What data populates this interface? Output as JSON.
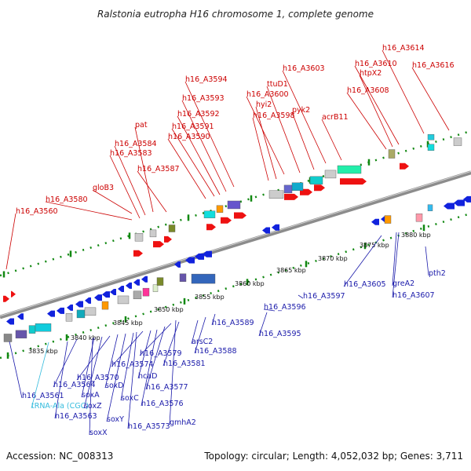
{
  "title": "Ralstonia eutropha H16 chromosome 1, complete genome",
  "footer": {
    "accession": "Accession: NC_008313",
    "topology": "Topology: circular; Length: 4,052,032 bp; Genes: 3,711"
  },
  "colors": {
    "forward": "#ee1111",
    "reverse": "#1122dd",
    "forward_label": "#cc0000",
    "reverse_label": "#1a1aaa",
    "trna_label": "#33bbdd",
    "backbone": "#8c8c8c",
    "tick": "#118811"
  },
  "scale_labels": [
    "3835 kbp",
    "3840 kbp",
    "3845 kbp",
    "3850 kbp",
    "3855 kbp",
    "3860 kbp",
    "3865 kbp",
    "3870 kbp",
    "3875 kbp",
    "3880 kbp"
  ],
  "forward_genes": [
    "h16_A3560",
    "gloB3",
    "h16_A3580",
    "h16_A3583",
    "h16_A3584",
    "pat",
    "h16_A3587",
    "h16_A3590",
    "h16_A3591",
    "h16_A3592",
    "h16_A3593",
    "h16_A3594",
    "h16_A3598",
    "hyi2",
    "h16_A3600",
    "ttuD1",
    "pyk2",
    "h16_A3603",
    "acrB11",
    "h16_A3608",
    "htpX2",
    "h16_A3610",
    "h16_A3614",
    "h16_A3616"
  ],
  "reverse_genes": [
    "h16_A3561",
    "tRNA-Ala (CGC)",
    "h16_A3563",
    "h16_A3564",
    "soxA",
    "soxZ",
    "soxX",
    "h16_A3570",
    "soxD",
    "soxY",
    "soxC",
    "h16_A3573",
    "h16_A3574",
    "hcaD",
    "h16_A3576",
    "h16_A3577",
    "h16_A3579",
    "h16_A3581",
    "gmhA2",
    "arsC2",
    "h16_A3588",
    "h16_A3589",
    "h16_A3595",
    "h16_A3596",
    "h16_A3597",
    "h16_A3605",
    "greA2",
    "h16_A3607",
    "pth2"
  ]
}
